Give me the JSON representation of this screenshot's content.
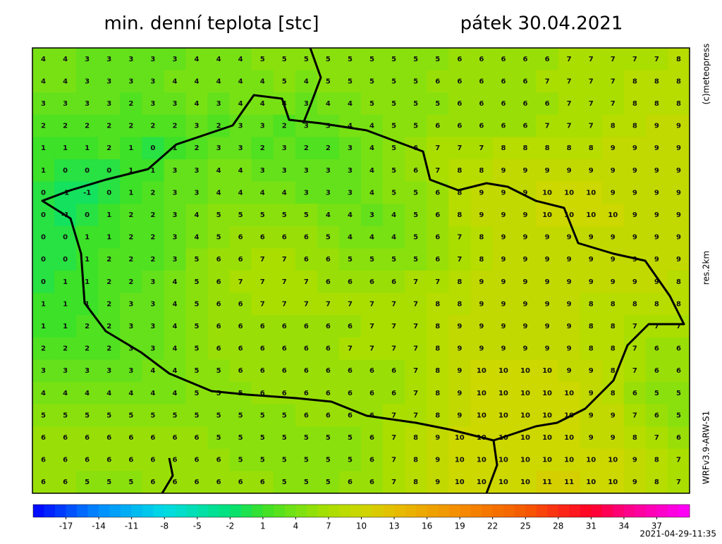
{
  "header": {
    "title": "min. denní teplota [stc]",
    "date": "pátek 30.04.2021"
  },
  "side_labels": [
    "(c)meteopress",
    "res.2km",
    "WRFv3.9-ARW-S1"
  ],
  "grid": [
    [
      4,
      4,
      3,
      3,
      3,
      3,
      3,
      4,
      4,
      4,
      5,
      5,
      5,
      5,
      5,
      5,
      5,
      5,
      5,
      6,
      6,
      6,
      6,
      6,
      7,
      7,
      7,
      7,
      7,
      8
    ],
    [
      4,
      4,
      3,
      3,
      3,
      3,
      4,
      4,
      4,
      4,
      4,
      5,
      4,
      5,
      5,
      5,
      5,
      5,
      6,
      6,
      6,
      6,
      6,
      7,
      7,
      7,
      7,
      8,
      8,
      8
    ],
    [
      3,
      3,
      3,
      3,
      2,
      3,
      3,
      4,
      3,
      4,
      4,
      4,
      3,
      4,
      4,
      5,
      5,
      5,
      5,
      6,
      6,
      6,
      6,
      6,
      7,
      7,
      7,
      8,
      8,
      8
    ],
    [
      2,
      2,
      2,
      2,
      2,
      2,
      2,
      3,
      2,
      3,
      3,
      2,
      3,
      3,
      4,
      4,
      5,
      5,
      6,
      6,
      6,
      6,
      6,
      7,
      7,
      7,
      8,
      8,
      9,
      9
    ],
    [
      1,
      1,
      1,
      2,
      1,
      0,
      1,
      2,
      3,
      3,
      2,
      3,
      2,
      2,
      3,
      4,
      5,
      6,
      7,
      7,
      7,
      8,
      8,
      8,
      8,
      8,
      9,
      9,
      9,
      9
    ],
    [
      1,
      0,
      0,
      0,
      1,
      1,
      3,
      3,
      4,
      4,
      3,
      3,
      3,
      3,
      3,
      4,
      5,
      6,
      7,
      8,
      8,
      9,
      9,
      9,
      9,
      9,
      9,
      9,
      9,
      9
    ],
    [
      0,
      -1,
      -1,
      0,
      1,
      2,
      3,
      3,
      4,
      4,
      4,
      4,
      3,
      3,
      3,
      4,
      5,
      5,
      6,
      8,
      9,
      9,
      9,
      10,
      10,
      10,
      9,
      9,
      9,
      9
    ],
    [
      0,
      -1,
      0,
      1,
      2,
      2,
      3,
      4,
      5,
      5,
      5,
      5,
      5,
      4,
      4,
      3,
      4,
      5,
      6,
      8,
      9,
      9,
      9,
      10,
      10,
      10,
      10,
      9,
      9,
      9
    ],
    [
      0,
      0,
      1,
      1,
      2,
      2,
      3,
      4,
      5,
      6,
      6,
      6,
      6,
      5,
      4,
      4,
      4,
      5,
      6,
      7,
      8,
      9,
      9,
      9,
      9,
      9,
      9,
      9,
      9,
      9
    ],
    [
      0,
      0,
      1,
      2,
      2,
      2,
      3,
      5,
      6,
      6,
      7,
      7,
      6,
      6,
      5,
      5,
      5,
      5,
      6,
      7,
      8,
      9,
      9,
      9,
      9,
      9,
      9,
      9,
      9,
      9
    ],
    [
      0,
      1,
      1,
      2,
      2,
      3,
      4,
      5,
      6,
      7,
      7,
      7,
      7,
      6,
      6,
      6,
      6,
      7,
      7,
      8,
      9,
      9,
      9,
      9,
      9,
      9,
      9,
      9,
      9,
      8
    ],
    [
      1,
      1,
      1,
      2,
      3,
      3,
      4,
      5,
      6,
      6,
      7,
      7,
      7,
      7,
      7,
      7,
      7,
      7,
      8,
      8,
      9,
      9,
      9,
      9,
      9,
      8,
      8,
      8,
      8,
      8
    ],
    [
      1,
      1,
      2,
      2,
      3,
      3,
      4,
      5,
      6,
      6,
      6,
      6,
      6,
      6,
      6,
      7,
      7,
      7,
      8,
      9,
      9,
      9,
      9,
      9,
      9,
      8,
      8,
      7,
      7,
      7
    ],
    [
      2,
      2,
      2,
      2,
      3,
      3,
      4,
      5,
      6,
      6,
      6,
      6,
      6,
      6,
      7,
      7,
      7,
      7,
      8,
      9,
      9,
      9,
      9,
      9,
      9,
      8,
      8,
      7,
      6,
      6
    ],
    [
      3,
      3,
      3,
      3,
      3,
      4,
      4,
      5,
      5,
      6,
      6,
      6,
      6,
      6,
      6,
      6,
      6,
      7,
      8,
      9,
      10,
      10,
      10,
      10,
      9,
      9,
      8,
      7,
      6,
      6
    ],
    [
      4,
      4,
      4,
      4,
      4,
      4,
      4,
      5,
      5,
      5,
      6,
      6,
      6,
      6,
      6,
      6,
      6,
      7,
      8,
      9,
      10,
      10,
      10,
      10,
      10,
      9,
      8,
      6,
      5,
      5
    ],
    [
      5,
      5,
      5,
      5,
      5,
      5,
      5,
      5,
      5,
      5,
      5,
      5,
      6,
      6,
      6,
      6,
      7,
      7,
      8,
      9,
      10,
      10,
      10,
      10,
      10,
      9,
      9,
      7,
      6,
      5
    ],
    [
      6,
      6,
      6,
      6,
      6,
      6,
      6,
      6,
      5,
      5,
      5,
      5,
      5,
      5,
      5,
      6,
      7,
      8,
      9,
      10,
      10,
      10,
      10,
      10,
      10,
      9,
      9,
      8,
      7,
      6
    ],
    [
      6,
      6,
      6,
      6,
      6,
      6,
      6,
      6,
      6,
      5,
      5,
      5,
      5,
      5,
      5,
      6,
      7,
      8,
      9,
      10,
      10,
      10,
      10,
      10,
      10,
      10,
      10,
      9,
      8,
      7
    ],
    [
      6,
      6,
      5,
      5,
      5,
      6,
      6,
      6,
      6,
      6,
      6,
      5,
      5,
      5,
      6,
      6,
      7,
      8,
      9,
      10,
      10,
      10,
      10,
      11,
      11,
      10,
      10,
      9,
      8,
      7
    ]
  ],
  "colorbar": {
    "lim": [
      -20,
      40
    ],
    "ticks": [
      -17,
      -14,
      -11,
      -8,
      -5,
      -2,
      1,
      4,
      7,
      10,
      13,
      16,
      19,
      22,
      25,
      28,
      31,
      34,
      37
    ]
  },
  "footer": "2021-04-29-11:35"
}
